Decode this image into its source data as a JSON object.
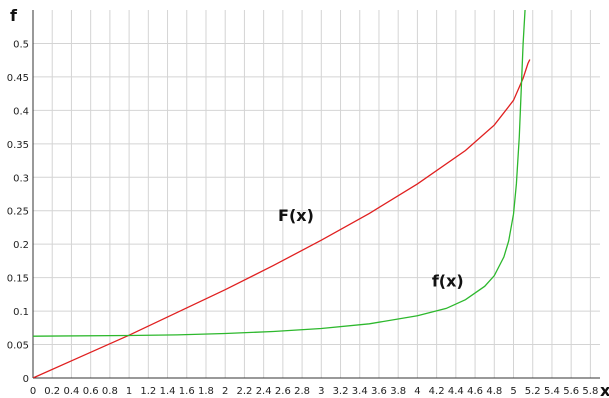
{
  "chart_data": {
    "type": "line",
    "title": "",
    "xlabel": "x",
    "ylabel": "f",
    "xlim": [
      0,
      5.9
    ],
    "ylim": [
      0,
      0.55
    ],
    "x_ticks": [
      0,
      0.2,
      0.4,
      0.6,
      0.8,
      1,
      1.2,
      1.4,
      1.6,
      1.8,
      2,
      2.2,
      2.4,
      2.6,
      2.8,
      3,
      3.2,
      3.4,
      3.6,
      3.8,
      4,
      4.2,
      4.4,
      4.6,
      4.8,
      5,
      5.2,
      5.4,
      5.6,
      5.8
    ],
    "x_tick_labels": [
      "0",
      "0.2",
      "0.4",
      "0.6",
      "0.8",
      "1",
      "1.2",
      "1.4",
      "1.6",
      "1.8",
      "2",
      "2.2",
      "2.4",
      "2.6",
      "2.8",
      "3",
      "3.2",
      "3.4",
      "3.6",
      "3.8",
      "4",
      "4.2",
      "4.4",
      "4.6",
      "4.8",
      "5",
      "5.2",
      "5.4",
      "5.6",
      "5.8"
    ],
    "y_ticks": [
      0,
      0.05,
      0.1,
      0.15,
      0.2,
      0.25,
      0.3,
      0.35,
      0.4,
      0.45,
      0.5
    ],
    "y_tick_labels": [
      "0",
      "0.05",
      "0.1",
      "0.15",
      "0.2",
      "0.25",
      "0.3",
      "0.35",
      "0.4",
      "0.45",
      "0.5"
    ],
    "grid": true,
    "legend": "none",
    "series": [
      {
        "name": "F(x)",
        "color": "#e02020",
        "label_anchor": [
          2.55,
          0.235
        ],
        "points": [
          [
            0,
            0
          ],
          [
            0.5,
            0.032
          ],
          [
            1,
            0.064
          ],
          [
            1.5,
            0.098
          ],
          [
            2,
            0.132
          ],
          [
            2.5,
            0.168
          ],
          [
            3,
            0.206
          ],
          [
            3.5,
            0.246
          ],
          [
            4,
            0.29
          ],
          [
            4.5,
            0.34
          ],
          [
            4.8,
            0.378
          ],
          [
            5.0,
            0.415
          ],
          [
            5.1,
            0.448
          ],
          [
            5.15,
            0.47
          ],
          [
            5.17,
            0.476
          ]
        ]
      },
      {
        "name": "f(x)",
        "color": "#2db82d",
        "label_anchor": [
          4.15,
          0.137
        ],
        "points": [
          [
            0,
            0.0625
          ],
          [
            1,
            0.0635
          ],
          [
            1.5,
            0.0645
          ],
          [
            2,
            0.0665
          ],
          [
            2.5,
            0.0695
          ],
          [
            3,
            0.074
          ],
          [
            3.5,
            0.081
          ],
          [
            4,
            0.093
          ],
          [
            4.3,
            0.104
          ],
          [
            4.5,
            0.117
          ],
          [
            4.7,
            0.137
          ],
          [
            4.8,
            0.153
          ],
          [
            4.9,
            0.181
          ],
          [
            4.95,
            0.205
          ],
          [
            5.0,
            0.245
          ],
          [
            5.03,
            0.29
          ],
          [
            5.06,
            0.36
          ],
          [
            5.08,
            0.43
          ],
          [
            5.1,
            0.5
          ],
          [
            5.12,
            0.55
          ]
        ]
      }
    ]
  }
}
